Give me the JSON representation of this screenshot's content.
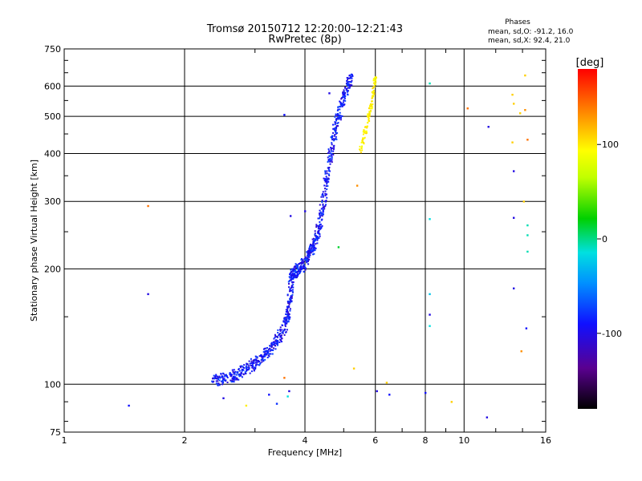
{
  "chart_data": {
    "type": "scatter",
    "title": "Tromsø 20150712 12:20:00–12:21:43",
    "subtitle": "RwPretec (8p)",
    "xlabel": "Frequency [MHz]",
    "ylabel": "Stationary phase Virtual Height [km]",
    "x_scale": "log",
    "y_scale": "log",
    "xlim": [
      1,
      16
    ],
    "ylim": [
      75,
      750
    ],
    "x_ticks": [
      1,
      2,
      4,
      6,
      8,
      10,
      16
    ],
    "x_tick_labels": [
      "1",
      "2",
      "4",
      "6",
      "8",
      "10",
      "16"
    ],
    "y_ticks": [
      75,
      100,
      200,
      300,
      400,
      500,
      600,
      750
    ],
    "y_tick_labels": [
      "75",
      "100",
      "200",
      "300",
      "400",
      "500",
      "600",
      "750"
    ],
    "grid": true,
    "phases_text": {
      "heading": "Phases",
      "line_o": "mean, sd,O: -91.2, 16.0",
      "line_x": "mean, sd,X: 92.4, 21.0"
    },
    "colorbar": {
      "title": "[deg]",
      "range": [
        -180,
        180
      ],
      "ticks": [
        100,
        0,
        -100
      ],
      "tick_labels": [
        "100",
        "0",
        "-100"
      ]
    },
    "o_trace": [
      [
        2.35,
        102
      ],
      [
        2.45,
        103
      ],
      [
        2.55,
        104
      ],
      [
        2.65,
        105
      ],
      [
        2.75,
        107
      ],
      [
        2.85,
        109
      ],
      [
        2.95,
        112
      ],
      [
        3.05,
        115
      ],
      [
        3.15,
        118
      ],
      [
        3.25,
        122
      ],
      [
        3.35,
        127
      ],
      [
        3.45,
        133
      ],
      [
        3.55,
        140
      ],
      [
        3.62,
        148
      ],
      [
        3.65,
        160
      ],
      [
        3.68,
        170
      ],
      [
        3.7,
        190
      ],
      [
        3.72,
        195
      ],
      [
        3.78,
        197
      ],
      [
        3.86,
        200
      ],
      [
        3.95,
        204
      ],
      [
        4.02,
        210
      ],
      [
        4.1,
        218
      ],
      [
        4.18,
        226
      ],
      [
        4.25,
        236
      ],
      [
        4.32,
        252
      ],
      [
        4.38,
        270
      ],
      [
        4.45,
        300
      ],
      [
        4.52,
        340
      ],
      [
        4.6,
        380
      ],
      [
        4.68,
        420
      ],
      [
        4.76,
        460
      ],
      [
        4.85,
        500
      ],
      [
        4.95,
        540
      ],
      [
        5.05,
        580
      ],
      [
        5.15,
        610
      ],
      [
        5.22,
        630
      ]
    ],
    "x_trace": [
      [
        5.5,
        400
      ],
      [
        5.6,
        440
      ],
      [
        5.7,
        470
      ],
      [
        5.78,
        500
      ],
      [
        5.85,
        530
      ],
      [
        5.92,
        570
      ],
      [
        5.97,
        610
      ],
      [
        6.0,
        640
      ]
    ],
    "scatter_points": [
      {
        "f": 1.45,
        "h": 88,
        "phase": -100
      },
      {
        "f": 1.62,
        "h": 292,
        "phase": 140
      },
      {
        "f": 1.62,
        "h": 172,
        "phase": -110
      },
      {
        "f": 2.5,
        "h": 92,
        "phase": -110
      },
      {
        "f": 2.85,
        "h": 88,
        "phase": 100
      },
      {
        "f": 3.25,
        "h": 94,
        "phase": -100
      },
      {
        "f": 3.4,
        "h": 89,
        "phase": -90
      },
      {
        "f": 3.55,
        "h": 505,
        "phase": -100
      },
      {
        "f": 3.55,
        "h": 104,
        "phase": 140
      },
      {
        "f": 3.62,
        "h": 93,
        "phase": -30
      },
      {
        "f": 3.65,
        "h": 96,
        "phase": -110
      },
      {
        "f": 3.68,
        "h": 275,
        "phase": -110
      },
      {
        "f": 4.0,
        "h": 283,
        "phase": -110
      },
      {
        "f": 4.6,
        "h": 575,
        "phase": -110
      },
      {
        "f": 4.85,
        "h": 228,
        "phase": 10
      },
      {
        "f": 5.3,
        "h": 110,
        "phase": 110
      },
      {
        "f": 5.4,
        "h": 330,
        "phase": 130
      },
      {
        "f": 6.05,
        "h": 96,
        "phase": -110
      },
      {
        "f": 6.4,
        "h": 101,
        "phase": 110
      },
      {
        "f": 6.5,
        "h": 94,
        "phase": -100
      },
      {
        "f": 8.0,
        "h": 95,
        "phase": -100
      },
      {
        "f": 8.2,
        "h": 610,
        "phase": -20
      },
      {
        "f": 8.2,
        "h": 270,
        "phase": -30
      },
      {
        "f": 8.2,
        "h": 172,
        "phase": -40
      },
      {
        "f": 8.2,
        "h": 152,
        "phase": -110
      },
      {
        "f": 8.2,
        "h": 142,
        "phase": -30
      },
      {
        "f": 9.3,
        "h": 90,
        "phase": 110
      },
      {
        "f": 10.2,
        "h": 525,
        "phase": 140
      },
      {
        "f": 11.4,
        "h": 82,
        "phase": -110
      },
      {
        "f": 11.5,
        "h": 470,
        "phase": -110
      },
      {
        "f": 13.2,
        "h": 570,
        "phase": 110
      },
      {
        "f": 13.3,
        "h": 360,
        "phase": -110
      },
      {
        "f": 13.3,
        "h": 272,
        "phase": -110
      },
      {
        "f": 13.3,
        "h": 178,
        "phase": -110
      },
      {
        "f": 13.3,
        "h": 540,
        "phase": 110
      },
      {
        "f": 13.2,
        "h": 428,
        "phase": 110
      },
      {
        "f": 13.8,
        "h": 510,
        "phase": 110
      },
      {
        "f": 13.9,
        "h": 122,
        "phase": 130
      },
      {
        "f": 14.2,
        "h": 640,
        "phase": 110
      },
      {
        "f": 14.2,
        "h": 520,
        "phase": 130
      },
      {
        "f": 14.4,
        "h": 435,
        "phase": 140
      },
      {
        "f": 14.1,
        "h": 300,
        "phase": 110
      },
      {
        "f": 14.4,
        "h": 260,
        "phase": -20
      },
      {
        "f": 14.4,
        "h": 245,
        "phase": -20
      },
      {
        "f": 14.4,
        "h": 222,
        "phase": -20
      },
      {
        "f": 14.3,
        "h": 140,
        "phase": -100
      }
    ]
  }
}
